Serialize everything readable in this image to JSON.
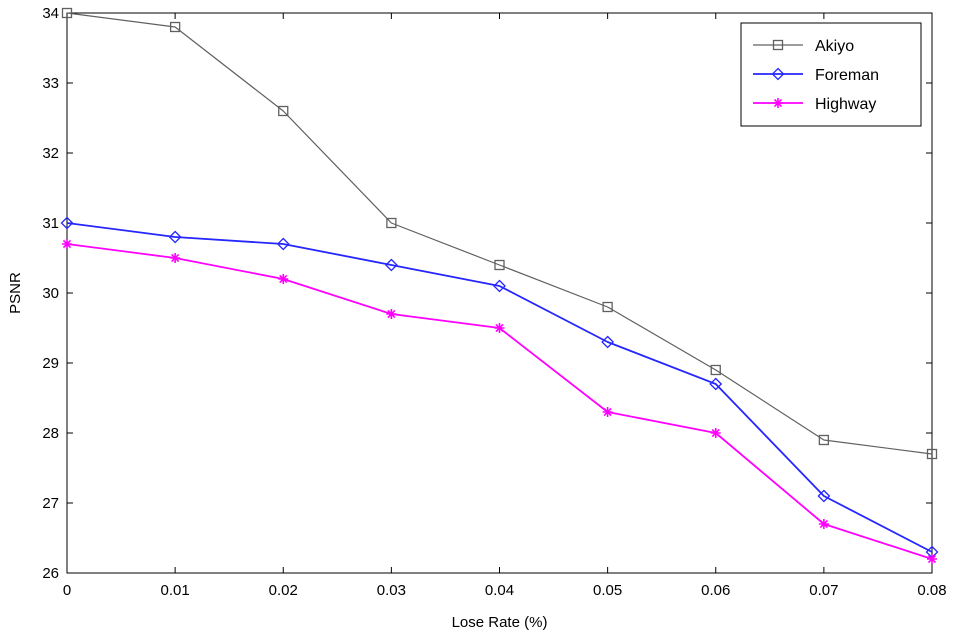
{
  "chart_data": {
    "type": "line",
    "title": "",
    "xlabel": "Lose Rate (%)",
    "ylabel": "PSNR",
    "x": [
      0,
      0.01,
      0.02,
      0.03,
      0.04,
      0.05,
      0.06,
      0.07,
      0.08
    ],
    "x_tick_labels": [
      "0",
      "0.01",
      "0.02",
      "0.03",
      "0.04",
      "0.05",
      "0.06",
      "0.07",
      "0.08"
    ],
    "y_ticks": [
      26,
      27,
      28,
      29,
      30,
      31,
      32,
      33,
      34
    ],
    "y_tick_labels": [
      "26",
      "27",
      "28",
      "29",
      "30",
      "31",
      "32",
      "33",
      "34"
    ],
    "xlim": [
      0,
      0.08
    ],
    "ylim": [
      26,
      34
    ],
    "grid": false,
    "legend_position": "top-right",
    "series": [
      {
        "name": "Akiyo",
        "color": "#606060",
        "marker": "square",
        "values": [
          34.0,
          33.8,
          32.6,
          31.0,
          30.4,
          29.8,
          28.9,
          27.9,
          27.7
        ]
      },
      {
        "name": "Foreman",
        "color": "#2626ff",
        "marker": "diamond",
        "values": [
          31.0,
          30.8,
          30.7,
          30.4,
          30.1,
          29.3,
          28.7,
          27.1,
          26.3
        ]
      },
      {
        "name": "Highway",
        "color": "#ff00ff",
        "marker": "star",
        "values": [
          30.7,
          30.5,
          30.2,
          29.7,
          29.5,
          28.3,
          28.0,
          26.7,
          26.2
        ]
      }
    ]
  }
}
